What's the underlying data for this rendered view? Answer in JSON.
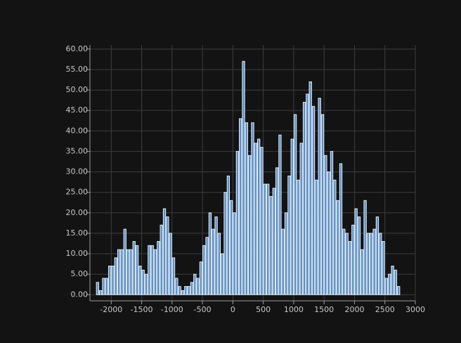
{
  "chart_data": {
    "type": "bar",
    "title": "",
    "xlabel": "",
    "ylabel": "",
    "xlim": [
      -2350,
      3000
    ],
    "ylim": [
      -1.5,
      61
    ],
    "grid": true,
    "bin_width": 50,
    "first_bin_start": -2250,
    "values": [
      3,
      1,
      4,
      4,
      7,
      7,
      9,
      11,
      11,
      16,
      11,
      11,
      13,
      12,
      7,
      6,
      5,
      12,
      12,
      11,
      13,
      17,
      21,
      19,
      15,
      9,
      4,
      2,
      1,
      2,
      2,
      3,
      5,
      4,
      8,
      12,
      14,
      20,
      16,
      19,
      15,
      10,
      25,
      29,
      23,
      20,
      35,
      43,
      57,
      42,
      34,
      42,
      37,
      38,
      36,
      27,
      27,
      24,
      26,
      31,
      39,
      16,
      20,
      29,
      38,
      44,
      28,
      37,
      47,
      49,
      52,
      46,
      28,
      48,
      44,
      34,
      30,
      35,
      28,
      23,
      32,
      16,
      15,
      13,
      17,
      21,
      19,
      11,
      23,
      15,
      15,
      16,
      19,
      15,
      13,
      4,
      5,
      7,
      6,
      2
    ],
    "x_ticks": [
      -2000,
      -1500,
      -1000,
      -500,
      0,
      500,
      1000,
      1500,
      2000,
      2500,
      3000
    ],
    "x_tick_labels": [
      "-2000",
      "-1500",
      "-1000",
      "-500",
      "0",
      "500",
      "1000",
      "1500",
      "2000",
      "2500",
      "3000"
    ],
    "y_ticks": [
      0,
      5,
      10,
      15,
      20,
      25,
      30,
      35,
      40,
      45,
      50,
      55,
      60
    ],
    "y_tick_labels": [
      "0.00",
      "5.00",
      "10.00",
      "15.00",
      "20.00",
      "25.00",
      "30.00",
      "35.00",
      "40.00",
      "45.00",
      "50.00",
      "55.00",
      "60.00"
    ],
    "colors": {
      "background": "#131313",
      "bar_fill": "#5b8ec3",
      "bar_stroke": "#e6eef7",
      "grid": "#3d3d3d",
      "axis": "#9a9a9a",
      "text": "#c8c8c8"
    }
  }
}
